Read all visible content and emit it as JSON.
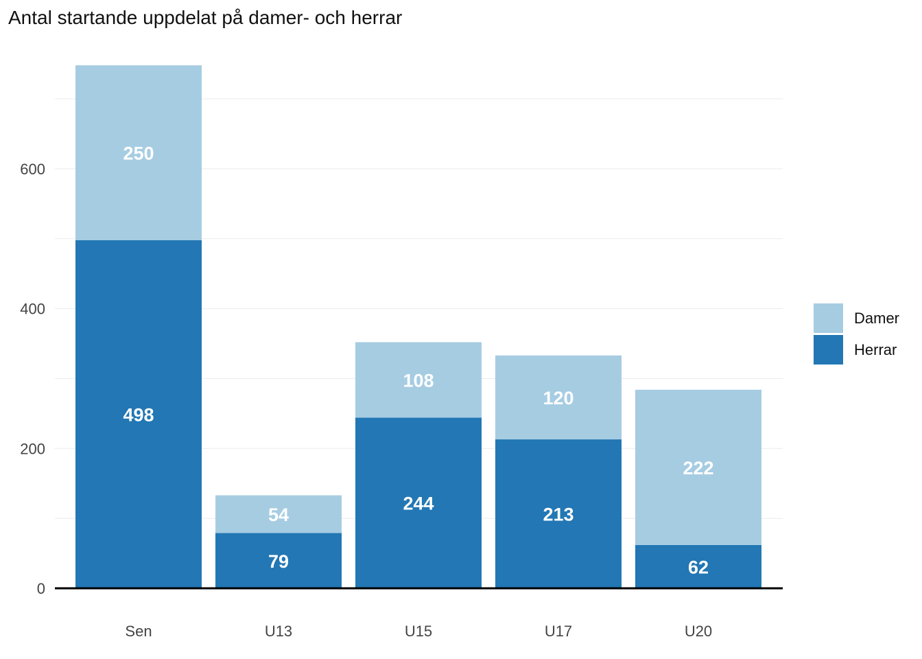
{
  "chart_data": {
    "type": "bar",
    "stacked": true,
    "title": "Antal startande uppdelat på damer- och herrar",
    "xlabel": "",
    "ylabel": "",
    "categories": [
      "Sen",
      "U13",
      "U15",
      "U17",
      "U20"
    ],
    "series": [
      {
        "name": "Herrar",
        "values": [
          498,
          79,
          244,
          213,
          62
        ],
        "color": "#2277b4"
      },
      {
        "name": "Damer",
        "values": [
          250,
          54,
          108,
          120,
          222
        ],
        "color": "#a6cce2"
      }
    ],
    "ylim": [
      0,
      750
    ],
    "yticks": [
      0,
      200,
      400,
      600
    ],
    "grid": true,
    "legend_position": "right",
    "data_labels": true
  }
}
